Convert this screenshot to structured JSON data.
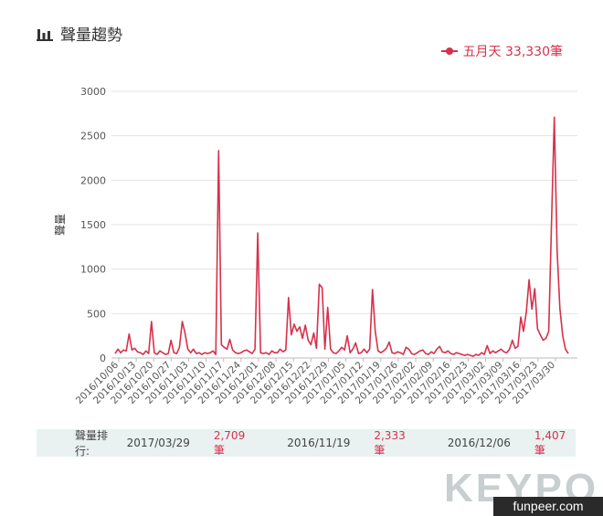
{
  "header": {
    "title": "聲量趨勢",
    "icon": "bar-chart-icon"
  },
  "colors": {
    "series": "#d6314b",
    "grid": "#e3e3e3",
    "axis_text": "#555555"
  },
  "chart_data": {
    "type": "line",
    "title": "聲量趨勢",
    "ylabel": "聲量",
    "xlabel": "",
    "ylim": [
      0,
      3000
    ],
    "yticks": [
      "0",
      "500",
      "1000",
      "1500",
      "2000",
      "2500",
      "3000"
    ],
    "x_tick_labels": [
      "2016/10/06",
      "2016/10/13",
      "2016/10/20",
      "2016/10/27",
      "2016/11/03",
      "2016/11/10",
      "2016/11/17",
      "2016/11/24",
      "2016/12/01",
      "2016/12/08",
      "2016/12/15",
      "2016/12/22",
      "2016/12/29",
      "2017/01/05",
      "2017/01/12",
      "2017/01/19",
      "2017/01/26",
      "2017/02/02",
      "2017/02/09",
      "2017/02/16",
      "2017/02/23",
      "2017/03/02",
      "2017/03/09",
      "2017/03/16",
      "2017/03/23",
      "2017/03/30"
    ],
    "grid": true,
    "legend_position": "top-right",
    "series": [
      {
        "name": "五月天",
        "legend_label": "五月天 33,330筆",
        "values": [
          50,
          100,
          60,
          90,
          80,
          270,
          90,
          110,
          70,
          60,
          40,
          80,
          50,
          410,
          60,
          40,
          80,
          60,
          40,
          50,
          200,
          60,
          50,
          120,
          410,
          280,
          100,
          60,
          100,
          50,
          60,
          40,
          60,
          50,
          60,
          80,
          40,
          2333,
          150,
          120,
          100,
          210,
          90,
          60,
          50,
          60,
          80,
          90,
          70,
          50,
          100,
          1407,
          60,
          50,
          60,
          40,
          80,
          60,
          60,
          100,
          70,
          90,
          680,
          260,
          380,
          300,
          350,
          220,
          370,
          200,
          150,
          280,
          110,
          830,
          790,
          100,
          570,
          100,
          60,
          50,
          80,
          120,
          90,
          250,
          60,
          100,
          170,
          50,
          60,
          100,
          60,
          100,
          770,
          300,
          80,
          60,
          80,
          110,
          180,
          60,
          50,
          70,
          60,
          40,
          120,
          100,
          50,
          40,
          60,
          80,
          90,
          50,
          40,
          70,
          50,
          100,
          130,
          70,
          60,
          80,
          50,
          40,
          60,
          50,
          40,
          30,
          40,
          30,
          20,
          40,
          30,
          60,
          40,
          140,
          50,
          80,
          60,
          80,
          100,
          70,
          60,
          100,
          200,
          110,
          130,
          460,
          300,
          520,
          880,
          550,
          780,
          330,
          260,
          200,
          220,
          300,
          1500,
          2709,
          1200,
          560,
          250,
          100,
          50
        ]
      }
    ]
  },
  "ranking": {
    "label": "聲量排行:",
    "entries": [
      {
        "date": "2017/03/29",
        "value": "2,709筆"
      },
      {
        "date": "2016/11/19",
        "value": "2,333筆"
      },
      {
        "date": "2016/12/06",
        "value": "1,407筆"
      }
    ]
  },
  "watermark": {
    "text": "KEYPO"
  },
  "badge": {
    "text": "funpeer.com"
  }
}
